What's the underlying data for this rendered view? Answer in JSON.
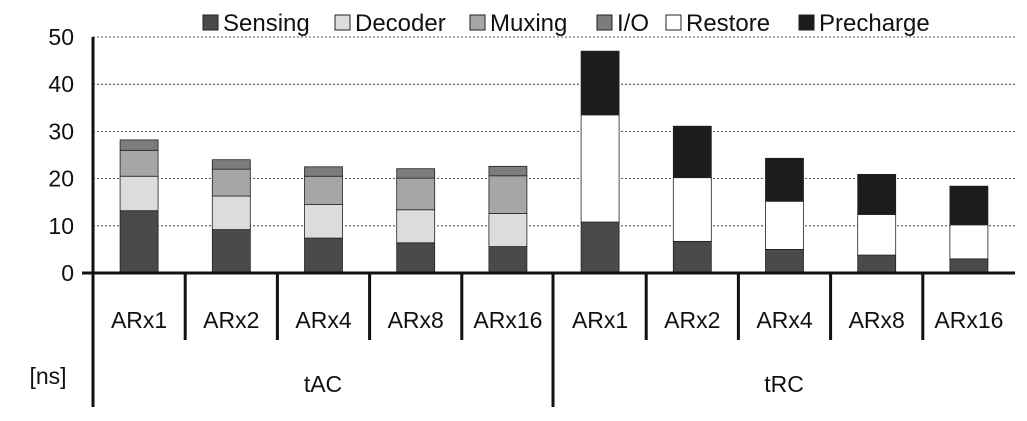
{
  "chart_data": {
    "type": "bar",
    "stacked": true,
    "unit_label": "[ns]",
    "ylim": [
      0,
      50
    ],
    "yticks": [
      0,
      10,
      20,
      30,
      40,
      50
    ],
    "grid": true,
    "legend_position": "top",
    "groups": [
      {
        "name": "tAC",
        "categories": [
          "ARx1",
          "ARx2",
          "ARx4",
          "ARx8",
          "ARx16"
        ]
      },
      {
        "name": "tRC",
        "categories": [
          "ARx1",
          "ARx2",
          "ARx4",
          "ARx8",
          "ARx16"
        ]
      }
    ],
    "categories": [
      "ARx1",
      "ARx2",
      "ARx4",
      "ARx8",
      "ARx16",
      "ARx1",
      "ARx2",
      "ARx4",
      "ARx8",
      "ARx16"
    ],
    "series": [
      {
        "name": "Sensing",
        "color": "#4a4a4a",
        "values": [
          13.2,
          9.2,
          7.4,
          6.4,
          5.6,
          10.8,
          6.7,
          5.0,
          3.8,
          3.0
        ]
      },
      {
        "name": "Decoder",
        "color": "#dcdcdc",
        "values": [
          7.3,
          7.1,
          7.1,
          7.0,
          7.0,
          0,
          0,
          0,
          0,
          0
        ]
      },
      {
        "name": "Muxing",
        "color": "#a6a6a6",
        "values": [
          5.5,
          5.7,
          6.0,
          6.7,
          8.0,
          0,
          0,
          0,
          0,
          0
        ]
      },
      {
        "name": "I/O",
        "color": "#7c7c7c",
        "values": [
          2.2,
          2.0,
          2.0,
          2.0,
          2.0,
          0,
          0,
          0,
          0,
          0
        ]
      },
      {
        "name": "Restore",
        "color": "#ffffff",
        "values": [
          0,
          0,
          0,
          0,
          0,
          22.7,
          13.5,
          10.2,
          8.6,
          7.2
        ]
      },
      {
        "name": "Precharge",
        "color": "#1c1c1c",
        "values": [
          0,
          0,
          0,
          0,
          0,
          13.5,
          10.9,
          9.1,
          8.5,
          8.2
        ]
      }
    ]
  }
}
